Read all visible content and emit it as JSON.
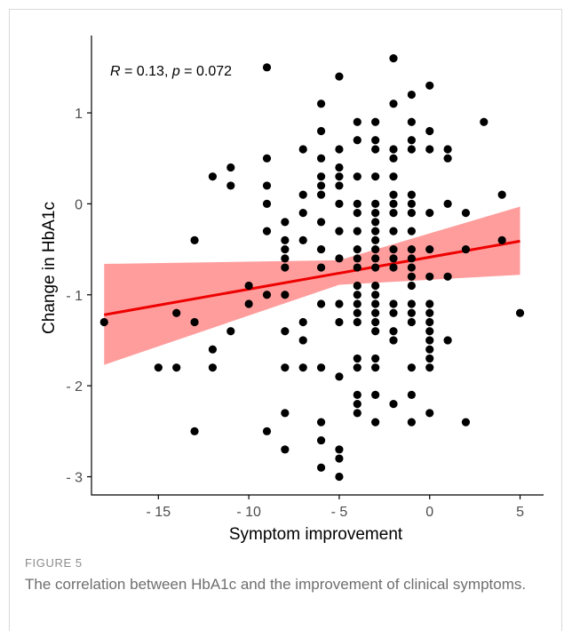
{
  "figure": {
    "label": "FIGURE 5",
    "caption": "The correlation between HbA1c and the improvement of clinical symptoms."
  },
  "colors": {
    "points": "#000000",
    "fit_line": "#ee0000",
    "confidence_band": "#ff8c8c",
    "axis": "#000000"
  },
  "chart_data": {
    "type": "scatter",
    "title": "",
    "xlabel": "Symptom improvement",
    "ylabel": "Change in HbA1c",
    "xlim": [
      -18.7,
      6.3
    ],
    "ylim": [
      -3.2,
      1.85
    ],
    "x_ticks": [
      -15,
      -10,
      -5,
      0,
      5
    ],
    "x_tick_labels": [
      "- 15",
      "- 10",
      "- 5",
      "0",
      "5"
    ],
    "y_ticks": [
      -3,
      -2,
      -1,
      0,
      1
    ],
    "y_tick_labels": [
      "- 3",
      "- 2",
      "- 1",
      "0",
      "1"
    ],
    "grid": false,
    "annotation": {
      "R_label": "R",
      "R_value": "0.13",
      "p_label": "p",
      "p_value": "0.072"
    },
    "fit": {
      "type": "linear",
      "line": {
        "x": [
          -18,
          5
        ],
        "y": [
          -1.22,
          -0.41
        ]
      },
      "confidence_band": {
        "x": [
          -18,
          -5,
          5
        ],
        "lower": [
          -1.77,
          -0.89,
          -0.78
        ],
        "upper": [
          -0.66,
          -0.62,
          -0.03
        ]
      }
    },
    "points": [
      [
        -18,
        -1.3
      ],
      [
        -15,
        -1.8
      ],
      [
        -14,
        -1.8
      ],
      [
        -14,
        -1.2
      ],
      [
        -13,
        -0.4
      ],
      [
        -13,
        -1.3
      ],
      [
        -13,
        -2.5
      ],
      [
        -12,
        0.3
      ],
      [
        -12,
        -1.6
      ],
      [
        -12,
        -1.8
      ],
      [
        -11,
        0.4
      ],
      [
        -11,
        0.2
      ],
      [
        -11,
        -1.4
      ],
      [
        -10,
        -0.9
      ],
      [
        -10,
        -1.1
      ],
      [
        -9,
        1.5
      ],
      [
        -9,
        0.5
      ],
      [
        -9,
        0.2
      ],
      [
        -9,
        0.0
      ],
      [
        -9,
        -0.3
      ],
      [
        -9,
        -1.0
      ],
      [
        -9,
        -2.5
      ],
      [
        -8,
        -0.2
      ],
      [
        -8,
        -0.4
      ],
      [
        -8,
        -0.5
      ],
      [
        -8,
        -0.6
      ],
      [
        -8,
        -0.7
      ],
      [
        -8,
        -1.0
      ],
      [
        -8,
        -1.4
      ],
      [
        -8,
        -1.8
      ],
      [
        -8,
        -2.3
      ],
      [
        -8,
        -2.7
      ],
      [
        -7,
        0.6
      ],
      [
        -7,
        0.1
      ],
      [
        -7,
        -0.1
      ],
      [
        -7,
        -0.4
      ],
      [
        -7,
        -1.3
      ],
      [
        -7,
        -1.5
      ],
      [
        -7,
        -1.8
      ],
      [
        -6,
        1.1
      ],
      [
        -6,
        0.8
      ],
      [
        -6,
        0.5
      ],
      [
        -6,
        0.3
      ],
      [
        -6,
        0.2
      ],
      [
        -6,
        0.1
      ],
      [
        -6,
        -0.2
      ],
      [
        -6,
        -0.5
      ],
      [
        -6,
        -0.7
      ],
      [
        -6,
        -1.1
      ],
      [
        -6,
        -1.8
      ],
      [
        -6,
        -2.4
      ],
      [
        -6,
        -2.6
      ],
      [
        -6,
        -2.9
      ],
      [
        -5,
        0.6
      ],
      [
        -5,
        0.3
      ],
      [
        -5,
        0.2
      ],
      [
        -5,
        0.0
      ],
      [
        -5,
        -0.3
      ],
      [
        -5,
        -0.6
      ],
      [
        -5,
        -1.1
      ],
      [
        -5,
        -1.3
      ],
      [
        -5,
        -1.9
      ],
      [
        -5,
        -2.7
      ],
      [
        -5,
        -2.8
      ],
      [
        -5,
        -3.0
      ],
      [
        -5,
        1.4
      ],
      [
        -5,
        0.4
      ],
      [
        -4,
        0.9
      ],
      [
        -4,
        0.7
      ],
      [
        -4,
        0.3
      ],
      [
        -4,
        0.0
      ],
      [
        -4,
        -0.1
      ],
      [
        -4,
        -0.3
      ],
      [
        -4,
        -0.5
      ],
      [
        -4,
        -0.6
      ],
      [
        -4,
        -0.7
      ],
      [
        -4,
        -0.9
      ],
      [
        -4,
        -1.0
      ],
      [
        -4,
        -1.1
      ],
      [
        -4,
        -1.2
      ],
      [
        -4,
        -1.3
      ],
      [
        -4,
        -1.7
      ],
      [
        -4,
        -1.8
      ],
      [
        -4,
        -2.1
      ],
      [
        -4,
        -2.2
      ],
      [
        -4,
        -2.3
      ],
      [
        -3,
        0.9
      ],
      [
        -3,
        0.7
      ],
      [
        -3,
        0.6
      ],
      [
        -3,
        0.3
      ],
      [
        -3,
        0.0
      ],
      [
        -3,
        -0.1
      ],
      [
        -3,
        -0.2
      ],
      [
        -3,
        -0.3
      ],
      [
        -3,
        -0.4
      ],
      [
        -3,
        -0.5
      ],
      [
        -3,
        -0.6
      ],
      [
        -3,
        -0.7
      ],
      [
        -3,
        -0.9
      ],
      [
        -3,
        -1.0
      ],
      [
        -3,
        -1.1
      ],
      [
        -3,
        -1.2
      ],
      [
        -3,
        -1.3
      ],
      [
        -3,
        -1.4
      ],
      [
        -3,
        -1.7
      ],
      [
        -3,
        -1.8
      ],
      [
        -3,
        -2.1
      ],
      [
        -3,
        -2.4
      ],
      [
        -2,
        1.6
      ],
      [
        -2,
        1.1
      ],
      [
        -2,
        0.6
      ],
      [
        -2,
        0.5
      ],
      [
        -2,
        0.3
      ],
      [
        -2,
        0.1
      ],
      [
        -2,
        0.0
      ],
      [
        -2,
        -0.1
      ],
      [
        -2,
        -0.3
      ],
      [
        -2,
        -0.5
      ],
      [
        -2,
        -0.6
      ],
      [
        -2,
        -0.7
      ],
      [
        -2,
        -1.1
      ],
      [
        -2,
        -1.2
      ],
      [
        -2,
        -1.4
      ],
      [
        -2,
        -1.5
      ],
      [
        -2,
        -2.2
      ],
      [
        -1,
        1.2
      ],
      [
        -1,
        0.9
      ],
      [
        -1,
        0.7
      ],
      [
        -1,
        0.6
      ],
      [
        -1,
        0.1
      ],
      [
        -1,
        0.0
      ],
      [
        -1,
        -0.1
      ],
      [
        -1,
        -0.3
      ],
      [
        -1,
        -0.5
      ],
      [
        -1,
        -0.6
      ],
      [
        -1,
        -0.7
      ],
      [
        -1,
        -0.8
      ],
      [
        -1,
        -0.9
      ],
      [
        -1,
        -1.1
      ],
      [
        -1,
        -1.2
      ],
      [
        -1,
        -1.3
      ],
      [
        -1,
        -1.8
      ],
      [
        -1,
        -2.1
      ],
      [
        -1,
        -2.4
      ],
      [
        0,
        1.3
      ],
      [
        0,
        0.8
      ],
      [
        0,
        0.6
      ],
      [
        0,
        -0.1
      ],
      [
        0,
        -0.5
      ],
      [
        0,
        -0.8
      ],
      [
        0,
        -1.1
      ],
      [
        0,
        -1.2
      ],
      [
        0,
        -1.3
      ],
      [
        0,
        -1.4
      ],
      [
        0,
        -1.5
      ],
      [
        0,
        -1.6
      ],
      [
        0,
        -1.7
      ],
      [
        0,
        -1.8
      ],
      [
        0,
        -2.3
      ],
      [
        1,
        0.6
      ],
      [
        1,
        0.5
      ],
      [
        1,
        0.0
      ],
      [
        1,
        -0.8
      ],
      [
        1,
        -1.5
      ],
      [
        2,
        -0.1
      ],
      [
        2,
        -0.5
      ],
      [
        2,
        -2.4
      ],
      [
        3,
        0.9
      ],
      [
        4,
        0.1
      ],
      [
        4,
        -0.4
      ],
      [
        5,
        -1.2
      ]
    ]
  }
}
